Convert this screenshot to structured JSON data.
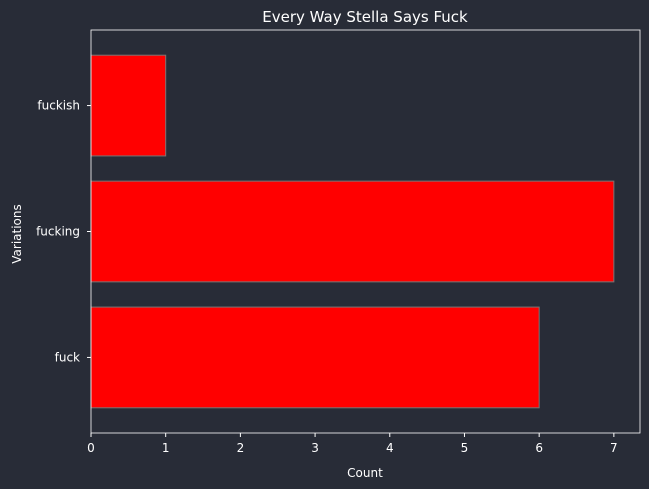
{
  "chart_data": {
    "type": "bar",
    "orientation": "horizontal",
    "title": "Every Way Stella Says Fuck",
    "xlabel": "Count",
    "ylabel": "Variations",
    "categories": [
      "fuck",
      "fucking",
      "fuckish"
    ],
    "values": [
      6,
      7,
      1
    ],
    "xlim": [
      0,
      7.35
    ],
    "x_ticks": [
      0,
      1,
      2,
      3,
      4,
      5,
      6,
      7
    ],
    "bar_color": "#ff0000",
    "bar_edge_color": "#777777",
    "background_color": "#282c37",
    "text_color": "#ffffff",
    "grid": false
  }
}
